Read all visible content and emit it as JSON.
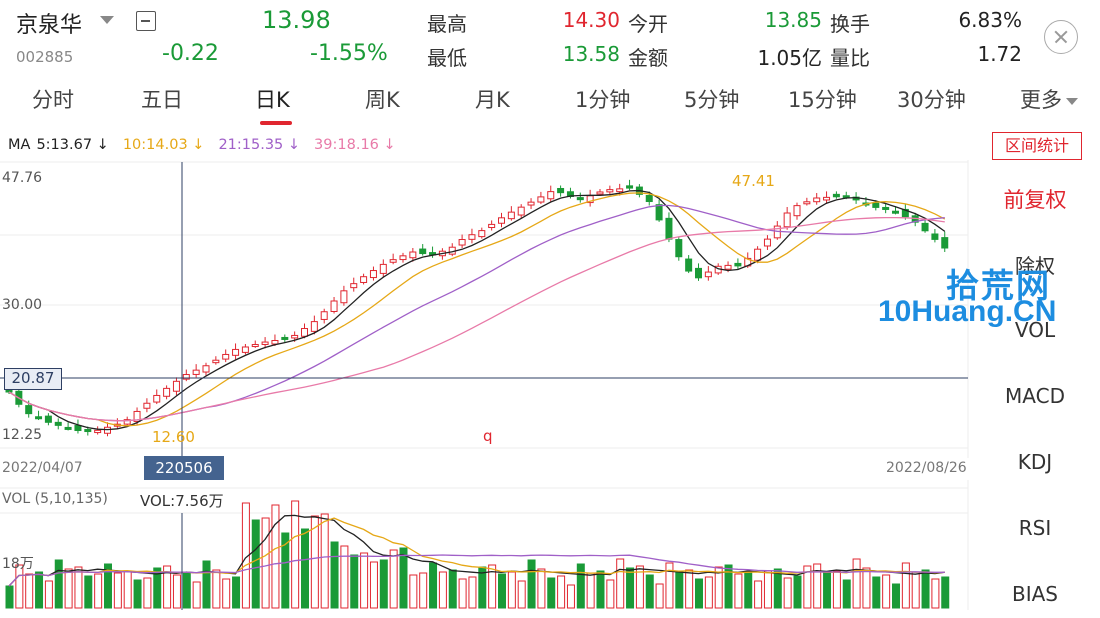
{
  "header": {
    "stock_name": "京泉华",
    "stock_code": "002885",
    "price": "13.98",
    "change": "-0.22",
    "change_pct": "-1.55%",
    "quotes": {
      "high_label": "最高",
      "high": "14.30",
      "low_label": "最低",
      "low": "13.58",
      "open_label": "今开",
      "open": "13.85",
      "amount_label": "金额",
      "amount": "1.05亿",
      "turnover_label": "换手",
      "turnover": "6.83%",
      "vol_ratio_label": "量比",
      "vol_ratio": "1.72"
    }
  },
  "tabs": [
    "分时",
    "五日",
    "日K",
    "周K",
    "月K",
    "1分钟",
    "5分钟",
    "15分钟",
    "30分钟",
    "更多"
  ],
  "active_tab": "日K",
  "ma": {
    "prefix": "MA",
    "ma5": "5:13.67 ↓",
    "ma10": "10:14.03 ↓",
    "ma21": "21:15.35 ↓",
    "ma39": "39:18.16 ↓"
  },
  "stat_button": "区间统计",
  "chart": {
    "y_top": "47.76",
    "y_mid": "30.00",
    "y_bottom": "12.25",
    "crosshair_price": "20.87",
    "crosshair_date": "220506",
    "date_start": "2022/04/07",
    "date_end": "2022/08/26",
    "max_label": "47.41",
    "min_label": "12.60",
    "marker": "q"
  },
  "volume": {
    "title": "VOL (5,10,135)",
    "value": "VOL:7.56万",
    "axis_label": "18万"
  },
  "sidebar": [
    "前复权",
    "除权",
    "VOL",
    "MACD",
    "KDJ",
    "RSI",
    "BIAS"
  ],
  "sidebar_active": "前复权",
  "watermark": {
    "line1": "拾荒网",
    "line2": "10Huang.CN"
  },
  "colors": {
    "up": "#e0262f",
    "down": "#1a9a37",
    "ma5": "#222222",
    "ma10": "#e6a817",
    "ma21": "#a060c8",
    "ma39": "#e87aa8"
  }
}
